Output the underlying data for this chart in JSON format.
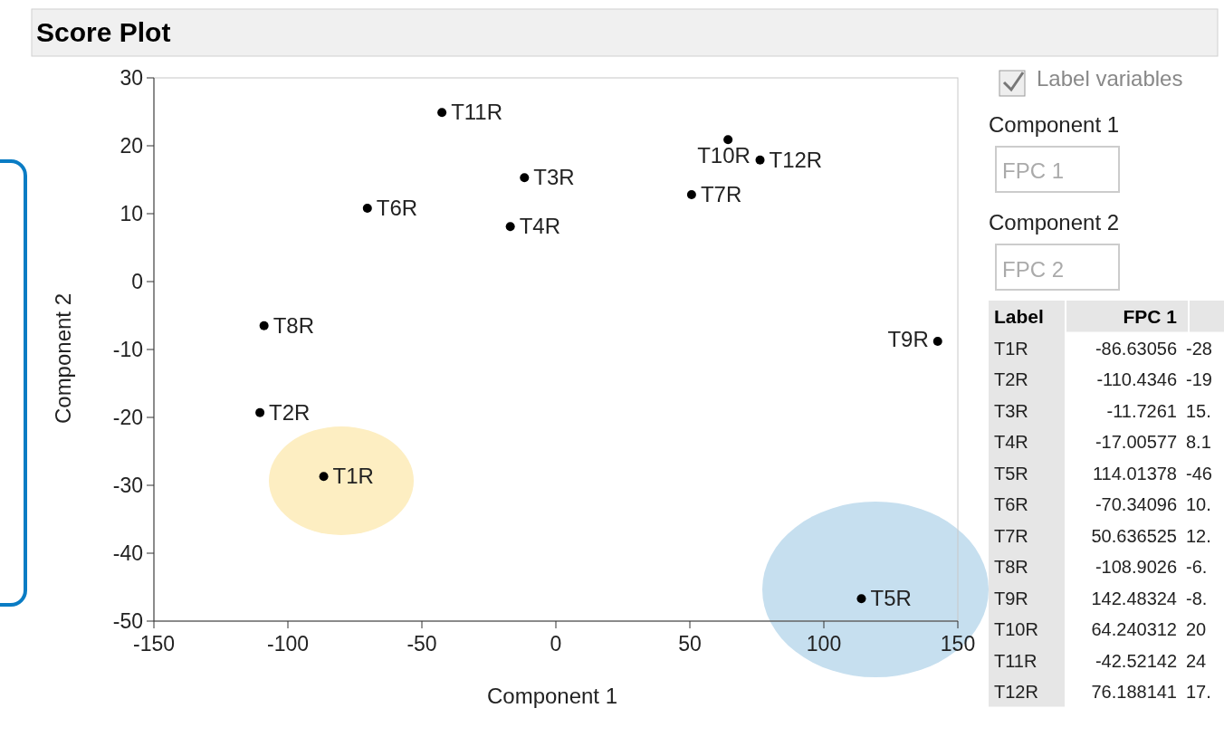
{
  "chart_data": {
    "type": "scatter",
    "title": "Score Plot",
    "xlabel": "Component 1",
    "ylabel": "Component 2",
    "xlim": [
      -150,
      150
    ],
    "xticks": [
      -150,
      -100,
      -50,
      0,
      50,
      100,
      150
    ],
    "ylim": [
      -50,
      30
    ],
    "yticks": [
      -50,
      -40,
      -30,
      -20,
      -10,
      0,
      10,
      20,
      30
    ],
    "marker": "circle",
    "series": [
      {
        "name": "T1R",
        "color": "#000000",
        "x": [
          -86.63056
        ],
        "values": [
          -28.7
        ]
      },
      {
        "name": "T2R",
        "color": "#000000",
        "x": [
          -110.4346
        ],
        "values": [
          -19.3
        ]
      },
      {
        "name": "T3R",
        "color": "#000000",
        "x": [
          -11.7261
        ],
        "values": [
          15.3
        ]
      },
      {
        "name": "T4R",
        "color": "#000000",
        "x": [
          -17.00577
        ],
        "values": [
          8.1
        ]
      },
      {
        "name": "T5R",
        "color": "#000000",
        "x": [
          114.01378
        ],
        "values": [
          -46.7
        ]
      },
      {
        "name": "T6R",
        "color": "#000000",
        "x": [
          -70.34096
        ],
        "values": [
          10.8
        ]
      },
      {
        "name": "T7R",
        "color": "#000000",
        "x": [
          50.636525
        ],
        "values": [
          12.8
        ]
      },
      {
        "name": "T8R",
        "color": "#000000",
        "x": [
          -108.9026
        ],
        "values": [
          -6.5
        ]
      },
      {
        "name": "T9R",
        "color": "#000000",
        "x": [
          142.48324
        ],
        "values": [
          -8.8
        ]
      },
      {
        "name": "T10R",
        "color": "#000000",
        "x": [
          64.240312
        ],
        "values": [
          20.9
        ]
      },
      {
        "name": "T11R",
        "color": "#000000",
        "x": [
          -42.52142
        ],
        "values": [
          24.9
        ]
      },
      {
        "name": "T12R",
        "color": "#000000",
        "x": [
          76.188141
        ],
        "values": [
          17.9
        ]
      }
    ],
    "annotations": [
      "Label variables",
      "Component 1",
      "FPC 1",
      "Component 2",
      "FPC 2",
      "Label",
      "FPC 1",
      "-86.63056",
      "-110.4346",
      "-11.7261",
      "-17.00577",
      "114.01378",
      "-70.34096",
      "50.636525",
      "-108.9026",
      "142.48324",
      "64.240312",
      "-42.52142",
      "76.188141",
      "-28",
      "-19",
      "15.",
      "8.1",
      "-46",
      "10.",
      "12.",
      "-6.",
      "-8.",
      "20",
      "24",
      "17."
    ]
  }
}
